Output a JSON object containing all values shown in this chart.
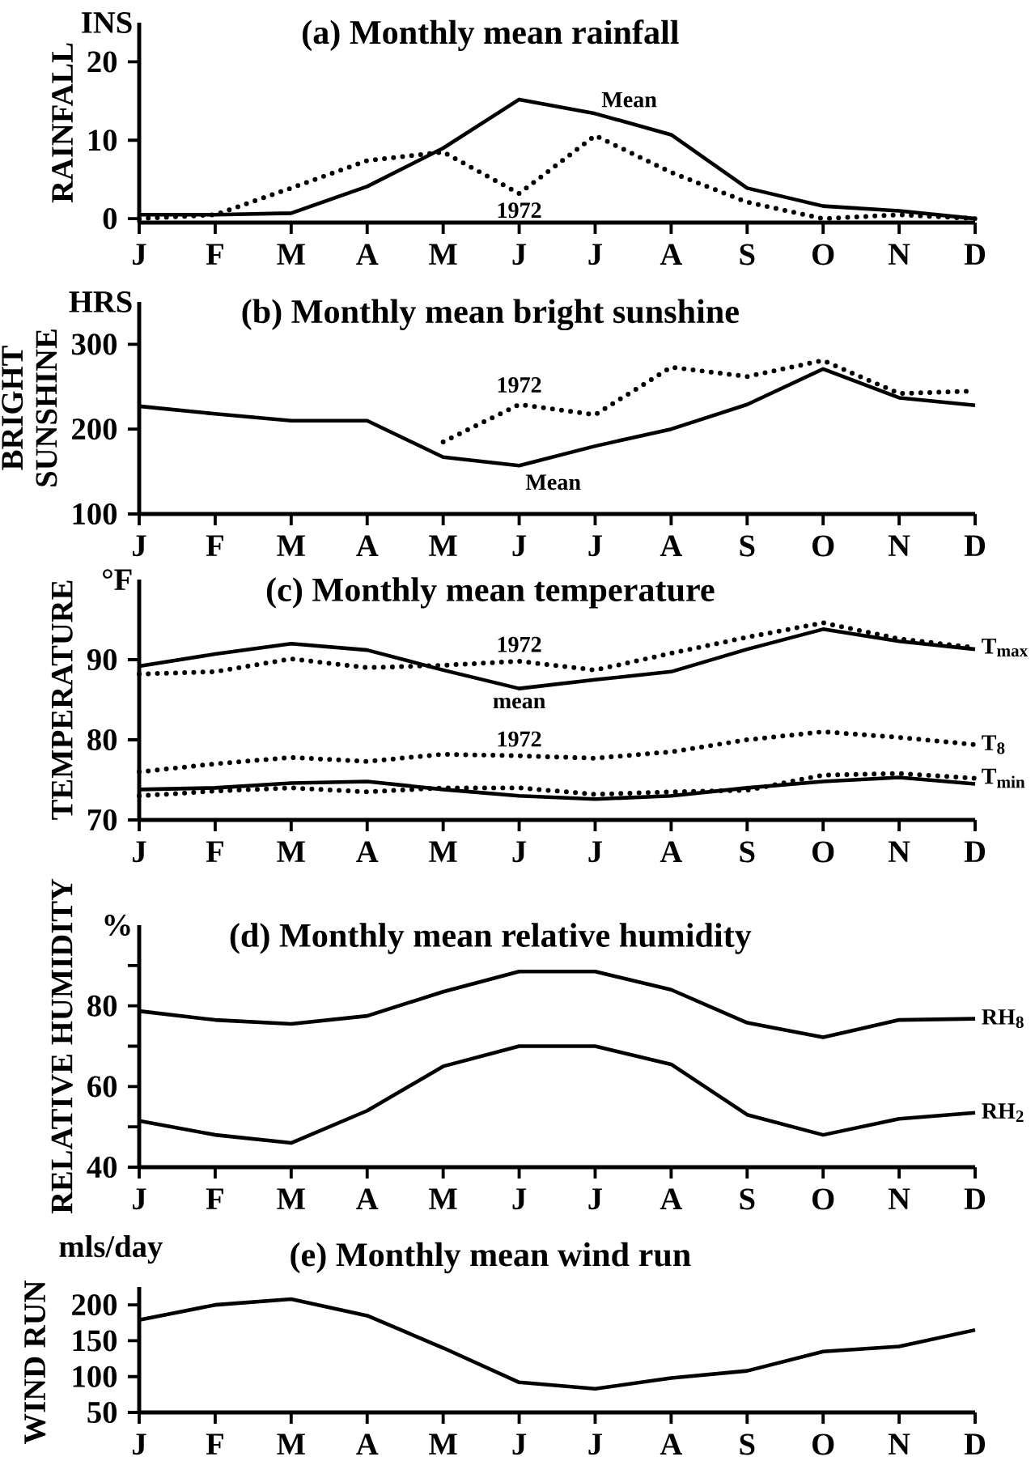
{
  "chart_data": [
    {
      "type": "line",
      "title": "(a)   Monthly mean rainfall",
      "ylabel": "RAINFALL",
      "categories": [
        "J",
        "F",
        "M",
        "A",
        "M",
        "J",
        "J",
        "A",
        "S",
        "O",
        "N",
        "D"
      ],
      "ylim": [
        -0.5,
        25
      ],
      "yticks": [
        0,
        10,
        20
      ],
      "annotations": [
        "INS"
      ],
      "series": [
        {
          "name": "Mean",
          "color": "#000000",
          "line_style": "solid",
          "values": [
            0.5,
            0.5,
            0.7,
            4.1,
            9,
            15.2,
            13.4,
            10.7,
            3.9,
            1.6,
            1,
            0
          ]
        },
        {
          "name": "1972",
          "color": "#000000",
          "line_style": "dotted",
          "values": [
            0,
            0.5,
            3.9,
            7.4,
            8.5,
            3.2,
            10.6,
            5.9,
            2.1,
            0,
            0.5,
            0
          ]
        }
      ]
    },
    {
      "type": "line",
      "title": "(b)   Monthly mean bright sunshine",
      "ylabel": "BRIGHT SUNSHINE",
      "categories": [
        "J",
        "F",
        "M",
        "A",
        "M",
        "J",
        "J",
        "A",
        "S",
        "O",
        "N",
        "D"
      ],
      "ylim": [
        100,
        350
      ],
      "yticks": [
        100,
        200,
        300
      ],
      "annotations": [
        "HRS"
      ],
      "series": [
        {
          "name": "Mean",
          "color": "#000000",
          "line_style": "solid",
          "values": [
            227,
            218,
            210,
            210,
            167,
            157,
            180,
            200,
            229,
            271,
            237,
            228
          ]
        },
        {
          "name": "1972",
          "color": "#000000",
          "line_style": "dotted",
          "values": [
            null,
            null,
            null,
            null,
            185,
            229,
            217,
            273,
            262,
            281,
            242,
            245
          ]
        }
      ]
    },
    {
      "type": "line",
      "title": "(c)   Monthly mean temperature",
      "ylabel": "TEMPERATURE",
      "categories": [
        "J",
        "F",
        "M",
        "A",
        "M",
        "J",
        "J",
        "A",
        "S",
        "O",
        "N",
        "D"
      ],
      "ylim": [
        70,
        100
      ],
      "yticks": [
        70,
        80,
        90
      ],
      "annotations": [
        "°F",
        "T$_{max}$",
        "T$_{8}$",
        "T$_{min}$"
      ],
      "series": [
        {
          "name": "mean",
          "color": "#000000",
          "line_style": "solid",
          "values": [
            89.2,
            90.7,
            92,
            91.2,
            88.7,
            86.4,
            87.5,
            88.5,
            91.3,
            93.8,
            92.3,
            91.3
          ]
        },
        {
          "name": "1972",
          "color": "#000000",
          "line_style": "dotted",
          "values": [
            88.2,
            88.5,
            90.1,
            89,
            89.3,
            89.8,
            88.7,
            90.8,
            92.8,
            94.6,
            92.6,
            91.5
          ]
        },
        {
          "name": "1972",
          "color": "#000000",
          "line_style": "dotted",
          "values": [
            76,
            77,
            77.8,
            77.3,
            78.2,
            78,
            77.7,
            78.5,
            80,
            81,
            80.3,
            79.4
          ]
        },
        {
          "color": "#000000",
          "line_style": "solid",
          "values": [
            73.8,
            74,
            74.6,
            74.8,
            73.8,
            73,
            72.6,
            73,
            74,
            74.8,
            75.3,
            74.5
          ]
        },
        {
          "color": "#000000",
          "line_style": "dotted",
          "values": [
            73,
            73.6,
            74,
            73.5,
            74,
            74,
            73.2,
            73.5,
            73.7,
            75.6,
            75.8,
            75.2
          ]
        }
      ]
    },
    {
      "type": "line",
      "title": "(d)   Monthly mean relative humidity",
      "ylabel": "RELATIVE HUMIDITY",
      "categories": [
        "J",
        "F",
        "M",
        "A",
        "M",
        "J",
        "J",
        "A",
        "S",
        "O",
        "N",
        "D"
      ],
      "ylim": [
        40,
        100
      ],
      "yticks": [
        40,
        {
          "value": 50,
          "label": null
        },
        60,
        {
          "value": 70,
          "label": null
        },
        80,
        {
          "value": 90,
          "label": null
        }
      ],
      "annotations": [
        "%",
        "RH$_{8}$",
        "RH$_{2}$"
      ],
      "series": [
        {
          "color": "#000000",
          "line_style": "solid",
          "values": [
            78.7,
            76.5,
            75.5,
            77.5,
            83.5,
            88.5,
            88.5,
            84,
            75.8,
            72.2,
            76.5,
            76.8
          ]
        },
        {
          "color": "#000000",
          "line_style": "solid",
          "values": [
            51.5,
            48,
            46,
            54,
            65,
            70,
            70,
            65.5,
            53,
            48,
            52,
            53.5
          ]
        }
      ]
    },
    {
      "type": "line",
      "title": "(e)   Monthly mean wind run",
      "ylabel": "WIND RUN",
      "categories": [
        "J",
        "F",
        "M",
        "A",
        "M",
        "J",
        "J",
        "A",
        "S",
        "O",
        "N",
        "D"
      ],
      "ylim": [
        50,
        225
      ],
      "yticks": [
        50,
        100,
        150,
        200
      ],
      "annotations": [
        "mls/day"
      ],
      "series": [
        {
          "color": "#000000",
          "line_style": "solid",
          "values": [
            179,
            200,
            208,
            185,
            140,
            92,
            83,
            98,
            108,
            135,
            142,
            165
          ]
        }
      ]
    }
  ]
}
